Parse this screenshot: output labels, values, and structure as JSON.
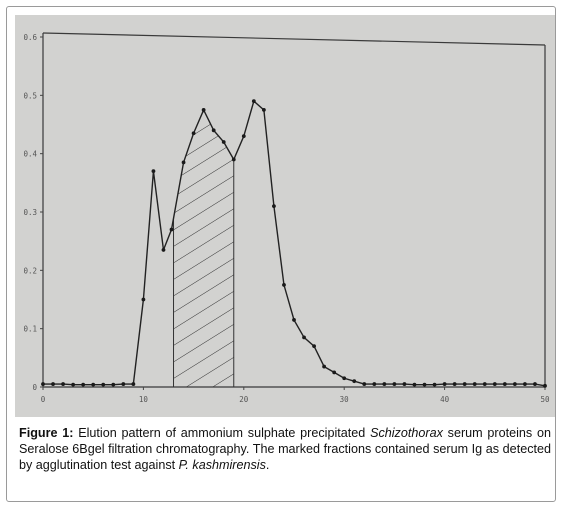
{
  "figure": {
    "caption": {
      "label": "Figure 1:",
      "part1": " Elution pattern of ammonium sulphate precipitated ",
      "species1": "Schizothorax",
      "part2": " serum proteins on Seralose 6Bgel filtration chromatography. The marked fractions contained serum Ig as detected by agglutination test against ",
      "species2": "P. kashmirensis",
      "part3": "."
    }
  },
  "chart_data": {
    "type": "line",
    "title": "",
    "xlabel": "",
    "ylabel": "",
    "xlim": [
      0,
      50
    ],
    "ylim": [
      0,
      0.6
    ],
    "x_ticks": [
      0,
      10,
      20,
      30,
      40,
      50
    ],
    "x_tick_labels": [
      "0",
      "10",
      "20",
      "30",
      "40",
      "50"
    ],
    "y_ticks": [
      0,
      0.1,
      0.2,
      0.3,
      0.4,
      0.5,
      0.6
    ],
    "y_tick_labels": [
      "0",
      "0.1",
      "0.2",
      "0.3",
      "0.4",
      "0.5",
      "0.6"
    ],
    "grid": false,
    "line_color": "#222222",
    "shaded_region": {
      "x_start": 13,
      "x_end": 19,
      "pattern": "diagonal-hatch"
    },
    "series": [
      {
        "x": [
          0,
          1,
          2,
          3,
          4,
          5,
          6,
          7,
          8,
          9,
          10,
          11,
          12,
          12.8,
          14,
          15,
          16,
          17,
          18,
          19,
          20,
          21,
          22,
          23,
          24,
          25,
          26,
          27,
          28,
          29,
          30,
          31,
          32,
          33,
          34,
          35,
          36,
          37,
          38,
          39,
          40,
          41,
          42,
          43,
          44,
          45,
          46,
          47,
          48,
          49,
          50
        ],
        "values": [
          0.005,
          0.005,
          0.005,
          0.004,
          0.004,
          0.004,
          0.004,
          0.004,
          0.005,
          0.005,
          0.15,
          0.37,
          0.235,
          0.27,
          0.385,
          0.435,
          0.475,
          0.44,
          0.42,
          0.39,
          0.43,
          0.49,
          0.475,
          0.31,
          0.175,
          0.115,
          0.085,
          0.07,
          0.035,
          0.025,
          0.015,
          0.01,
          0.005,
          0.005,
          0.005,
          0.005,
          0.005,
          0.004,
          0.004,
          0.004,
          0.005,
          0.005,
          0.005,
          0.005,
          0.005,
          0.005,
          0.005,
          0.005,
          0.005,
          0.005,
          0.002
        ]
      }
    ]
  }
}
